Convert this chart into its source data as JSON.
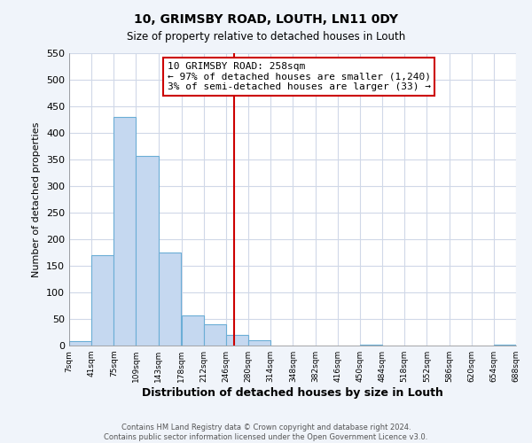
{
  "title": "10, GRIMSBY ROAD, LOUTH, LN11 0DY",
  "subtitle": "Size of property relative to detached houses in Louth",
  "xlabel": "Distribution of detached houses by size in Louth",
  "ylabel": "Number of detached properties",
  "bar_left_edges": [
    7,
    41,
    75,
    109,
    143,
    178,
    212,
    246,
    280,
    314,
    348,
    382,
    416,
    450,
    484,
    518,
    552,
    586,
    620,
    654
  ],
  "bar_heights": [
    8,
    170,
    430,
    357,
    175,
    57,
    40,
    20,
    10,
    0,
    0,
    0,
    0,
    2,
    0,
    0,
    0,
    0,
    0,
    2
  ],
  "bin_width": 34,
  "tick_labels": [
    "7sqm",
    "41sqm",
    "75sqm",
    "109sqm",
    "143sqm",
    "178sqm",
    "212sqm",
    "246sqm",
    "280sqm",
    "314sqm",
    "348sqm",
    "382sqm",
    "416sqm",
    "450sqm",
    "484sqm",
    "518sqm",
    "552sqm",
    "586sqm",
    "620sqm",
    "654sqm",
    "688sqm"
  ],
  "bar_color": "#c5d8f0",
  "bar_edge_color": "#6baed6",
  "property_line_x": 258,
  "property_line_color": "#cc0000",
  "annotation_title": "10 GRIMSBY ROAD: 258sqm",
  "annotation_line1": "← 97% of detached houses are smaller (1,240)",
  "annotation_line2": "3% of semi-detached houses are larger (33) →",
  "annotation_box_color": "#ffffff",
  "annotation_box_edge_color": "#cc0000",
  "ylim": [
    0,
    550
  ],
  "yticks": [
    0,
    50,
    100,
    150,
    200,
    250,
    300,
    350,
    400,
    450,
    500,
    550
  ],
  "xlim_min": 7,
  "xlim_max": 688,
  "background_color": "#f0f4fa",
  "plot_bg_color": "#ffffff",
  "grid_color": "#d0d8e8",
  "footer_line1": "Contains HM Land Registry data © Crown copyright and database right 2024.",
  "footer_line2": "Contains public sector information licensed under the Open Government Licence v3.0."
}
